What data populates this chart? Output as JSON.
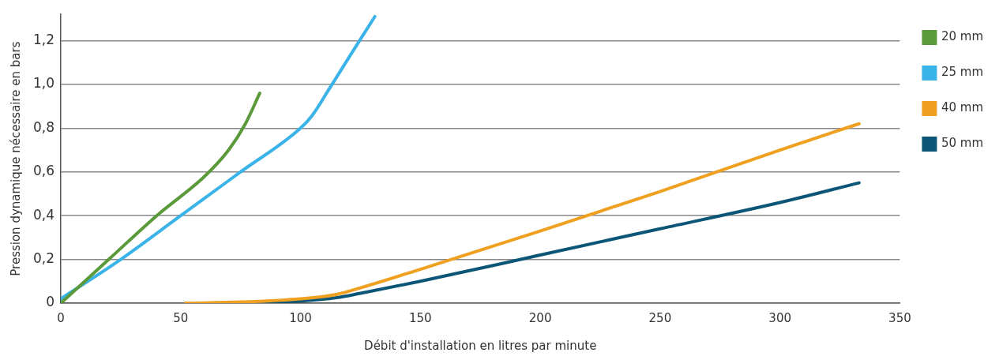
{
  "chart_data": {
    "type": "line",
    "xlabel": "Débit d'installation en litres par minute",
    "ylabel": "Pression dynamique nécessaire en bars",
    "xlim": [
      0,
      350
    ],
    "xticks": [
      0,
      50,
      100,
      150,
      200,
      250,
      300,
      350
    ],
    "ylim": [
      0,
      1.32
    ],
    "yticks": [
      0,
      {
        "value": 0.2,
        "label": "0,2"
      },
      {
        "value": 0.4,
        "label": "0,4"
      },
      {
        "value": 0.6,
        "label": "0,6"
      },
      {
        "value": 0.8,
        "label": "0,8"
      },
      {
        "value": 1,
        "label": "1,0"
      },
      {
        "value": 1.2,
        "label": "1,2"
      }
    ],
    "grid": "y",
    "legend": "right",
    "marker": "none",
    "line_style": "solid",
    "series": [
      {
        "name": "20 mm",
        "color": "#5a9a3a",
        "x": [
          0,
          20,
          40,
          60,
          70,
          77,
          83
        ],
        "values": [
          0,
          0.2,
          0.4,
          0.58,
          0.7,
          0.82,
          0.96
        ]
      },
      {
        "name": "25 mm",
        "color": "#3ab4e8",
        "x": [
          0,
          25,
          50,
          75,
          100,
          105,
          112,
          120,
          131
        ],
        "values": [
          0.02,
          0.2,
          0.4,
          0.6,
          0.8,
          0.86,
          0.98,
          1.12,
          1.31
        ]
      },
      {
        "name": "40 mm",
        "color": "#f0a020",
        "x": [
          52,
          75,
          100,
          115,
          125,
          150,
          200,
          250,
          300,
          333
        ],
        "values": [
          0,
          0.005,
          0.02,
          0.04,
          0.07,
          0.155,
          0.33,
          0.51,
          0.7,
          0.82
        ]
      },
      {
        "name": "50 mm",
        "color": "#0b5577",
        "x": [
          52,
          75,
          100,
          115,
          125,
          150,
          200,
          250,
          300,
          333
        ],
        "values": [
          0,
          0,
          0.01,
          0.025,
          0.045,
          0.1,
          0.22,
          0.34,
          0.46,
          0.55
        ]
      }
    ]
  }
}
